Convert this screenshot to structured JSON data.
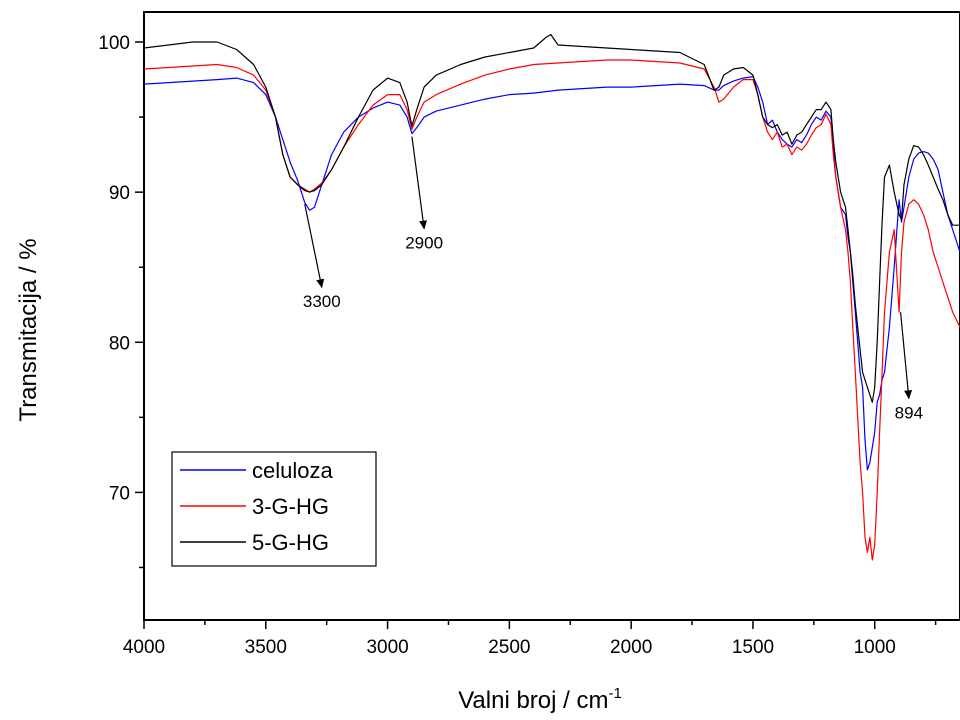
{
  "chart_data": {
    "type": "line",
    "xlabel": "Valni broj / cm",
    "xlabel_sup": "-1",
    "ylabel": "Transmitacija / %",
    "xlim": [
      4000,
      650
    ],
    "ylim": [
      61.5,
      102
    ],
    "x_reversed": true,
    "grid": false,
    "legend_position": "bottom-left",
    "x_ticks": [
      4000,
      3500,
      3000,
      2500,
      2000,
      1500,
      1000
    ],
    "x_tick_labels": [
      "4000",
      "3500",
      "3000",
      "2500",
      "2000",
      "1500",
      "1000"
    ],
    "y_ticks": [
      70,
      80,
      90,
      100
    ],
    "y_tick_labels": [
      "70",
      "80",
      "90",
      "100"
    ],
    "series": [
      {
        "name": "celuloza",
        "color": "#0000ff",
        "x": [
          4000,
          3900,
          3800,
          3700,
          3620,
          3550,
          3500,
          3460,
          3430,
          3400,
          3370,
          3340,
          3320,
          3300,
          3270,
          3230,
          3180,
          3120,
          3060,
          3000,
          2950,
          2920,
          2900,
          2880,
          2850,
          2800,
          2700,
          2600,
          2500,
          2400,
          2300,
          2200,
          2100,
          2000,
          1900,
          1800,
          1700,
          1660,
          1640,
          1620,
          1580,
          1540,
          1500,
          1480,
          1460,
          1440,
          1420,
          1400,
          1380,
          1360,
          1340,
          1320,
          1300,
          1280,
          1260,
          1240,
          1220,
          1200,
          1180,
          1170,
          1160,
          1150,
          1140,
          1120,
          1110,
          1100,
          1090,
          1080,
          1070,
          1060,
          1050,
          1040,
          1030,
          1020,
          1010,
          1000,
          990,
          980,
          970,
          960,
          940,
          920,
          900,
          890,
          880,
          860,
          840,
          820,
          800,
          780,
          760,
          740,
          720,
          700,
          680,
          650
        ],
        "y": [
          97.2,
          97.3,
          97.4,
          97.5,
          97.6,
          97.3,
          96.5,
          95,
          93.5,
          92,
          90.8,
          89.3,
          88.8,
          89,
          90.5,
          92.5,
          94,
          95,
          95.6,
          96,
          95.8,
          95,
          93.9,
          94.3,
          95,
          95.4,
          95.8,
          96.2,
          96.5,
          96.6,
          96.8,
          96.9,
          97,
          97,
          97.1,
          97.2,
          97.1,
          96.8,
          96.8,
          97.1,
          97.4,
          97.6,
          97.7,
          97,
          96,
          94.5,
          94.8,
          94,
          93.5,
          93.2,
          93,
          93.5,
          93.3,
          93.8,
          94.5,
          95,
          94.8,
          95.4,
          95,
          93,
          91,
          90,
          89,
          88.5,
          87,
          86,
          84,
          82,
          80,
          78,
          77,
          73.5,
          71.5,
          72,
          73,
          74,
          76,
          76.5,
          77.5,
          78,
          81,
          85,
          89.5,
          88,
          89,
          91,
          92.2,
          92.6,
          92.7,
          92.6,
          92.2,
          91.5,
          90,
          88.5,
          87.5,
          86
        ],
        "view_x": [
          4000,
          650
        ]
      },
      {
        "name": "3-G-HG",
        "color": "#ff0000",
        "x": [
          4000,
          3900,
          3800,
          3700,
          3620,
          3550,
          3500,
          3460,
          3430,
          3400,
          3370,
          3340,
          3320,
          3300,
          3270,
          3230,
          3180,
          3120,
          3060,
          3000,
          2950,
          2920,
          2900,
          2880,
          2850,
          2800,
          2700,
          2600,
          2500,
          2400,
          2300,
          2200,
          2100,
          2000,
          1900,
          1800,
          1700,
          1660,
          1640,
          1620,
          1580,
          1540,
          1500,
          1480,
          1460,
          1440,
          1420,
          1400,
          1380,
          1360,
          1340,
          1320,
          1300,
          1280,
          1260,
          1240,
          1220,
          1200,
          1180,
          1170,
          1160,
          1150,
          1140,
          1120,
          1110,
          1100,
          1090,
          1080,
          1070,
          1060,
          1050,
          1040,
          1030,
          1020,
          1010,
          1000,
          990,
          980,
          970,
          960,
          940,
          920,
          900,
          890,
          880,
          860,
          840,
          820,
          800,
          780,
          760,
          740,
          720,
          700,
          680,
          650
        ],
        "y": [
          98.2,
          98.3,
          98.4,
          98.5,
          98.3,
          97.8,
          96.8,
          95,
          92.5,
          91,
          90.5,
          90.2,
          90,
          90.2,
          90.6,
          91.5,
          93,
          94.5,
          95.8,
          96.5,
          96.5,
          95.5,
          94.2,
          95,
          96,
          96.5,
          97.2,
          97.8,
          98.2,
          98.5,
          98.6,
          98.7,
          98.8,
          98.8,
          98.7,
          98.6,
          98.2,
          97,
          96,
          96.2,
          97,
          97.5,
          97.5,
          96.5,
          95,
          94,
          93.5,
          94,
          93,
          93.2,
          92.5,
          93,
          92.8,
          93.2,
          93.8,
          94.3,
          94.5,
          95.2,
          94.5,
          92.5,
          91,
          90,
          89,
          87.5,
          86,
          84,
          81,
          78,
          75,
          72,
          70,
          67,
          66,
          67,
          65.5,
          66.5,
          70,
          74,
          78,
          82,
          86,
          87.5,
          82,
          86,
          88,
          89.2,
          89.5,
          89.2,
          88.5,
          87.5,
          86,
          85,
          84,
          83,
          82,
          81
        ],
        "view_x": [
          4000,
          650
        ]
      },
      {
        "name": "5-G-HG",
        "color": "#000000",
        "x": [
          4000,
          3900,
          3800,
          3700,
          3620,
          3550,
          3500,
          3460,
          3430,
          3400,
          3370,
          3340,
          3320,
          3300,
          3270,
          3230,
          3180,
          3120,
          3060,
          3000,
          2950,
          2920,
          2900,
          2880,
          2850,
          2800,
          2700,
          2600,
          2500,
          2400,
          2350,
          2330,
          2300,
          2200,
          2100,
          2000,
          1900,
          1800,
          1700,
          1660,
          1640,
          1620,
          1580,
          1540,
          1500,
          1480,
          1460,
          1440,
          1420,
          1400,
          1380,
          1360,
          1340,
          1320,
          1300,
          1280,
          1260,
          1240,
          1220,
          1200,
          1180,
          1170,
          1160,
          1150,
          1140,
          1120,
          1110,
          1100,
          1090,
          1080,
          1070,
          1060,
          1050,
          1040,
          1030,
          1020,
          1010,
          1000,
          990,
          980,
          970,
          960,
          940,
          920,
          900,
          890,
          880,
          860,
          840,
          820,
          800,
          780,
          760,
          740,
          720,
          700,
          680,
          650
        ],
        "y": [
          99.6,
          99.8,
          100,
          100,
          99.5,
          98.5,
          97,
          95,
          92.5,
          91,
          90.5,
          90.1,
          90,
          90.1,
          90.5,
          91.5,
          93,
          95,
          96.8,
          97.6,
          97.3,
          96,
          94.4,
          95.5,
          97,
          97.8,
          98.5,
          99,
          99.3,
          99.6,
          100.3,
          100.5,
          99.8,
          99.7,
          99.6,
          99.5,
          99.4,
          99.3,
          98.5,
          96.8,
          97,
          97.8,
          98.2,
          98.3,
          97.8,
          96.5,
          95,
          94.5,
          94.3,
          94.5,
          93.8,
          94,
          93.2,
          93.8,
          94,
          94.5,
          95,
          95.5,
          95.5,
          96,
          95.5,
          93.5,
          92,
          91,
          90,
          89,
          87.5,
          86,
          84.5,
          82.5,
          81,
          79.5,
          78,
          77.5,
          77,
          76.5,
          76,
          77,
          80,
          84,
          88,
          91,
          91.8,
          90,
          88.5,
          88.2,
          90.5,
          92.2,
          93.1,
          93,
          92.5,
          91.8,
          91,
          90.2,
          89.5,
          88.5,
          87.8,
          87.8
        ],
        "view_x": [
          4000,
          650
        ]
      }
    ],
    "annotations": [
      {
        "text": "3300",
        "point": [
          3340,
          89.2
        ],
        "label": [
          3270,
          82.6
        ]
      },
      {
        "text": "2900",
        "point": [
          2900,
          93.7
        ],
        "label": [
          2850,
          86.5
        ]
      },
      {
        "text": "894",
        "point": [
          894,
          82.0
        ],
        "label": [
          860,
          75.2
        ]
      }
    ]
  }
}
